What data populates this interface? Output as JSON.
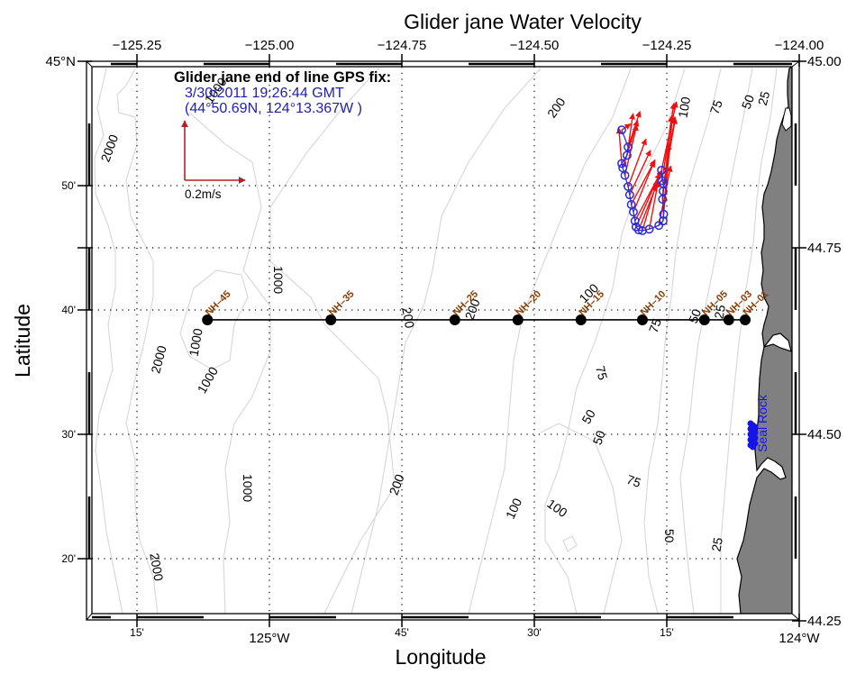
{
  "title": "Glider jane Water Velocity",
  "xlabel": "Longitude",
  "ylabel": "Latitude",
  "top_axis_ticks": [
    {
      "lon": -125.25,
      "label": "−125.25"
    },
    {
      "lon": -125.0,
      "label": "−125.00"
    },
    {
      "lon": -124.75,
      "label": "−124.75"
    },
    {
      "lon": -124.5,
      "label": "−124.50"
    },
    {
      "lon": -124.25,
      "label": "−124.25"
    },
    {
      "lon": -124.0,
      "label": "−124.00"
    }
  ],
  "bottom_axis_ticks": [
    {
      "lon": -125.25,
      "label": "15'"
    },
    {
      "lon": -125.0,
      "label": "125°W"
    },
    {
      "lon": -124.75,
      "label": "45'"
    },
    {
      "lon": -124.5,
      "label": "30'"
    },
    {
      "lon": -124.25,
      "label": "15'"
    },
    {
      "lon": -124.0,
      "label": "124°W"
    }
  ],
  "left_axis_ticks": [
    {
      "lat": 45.0,
      "label": "45°N"
    },
    {
      "lat": 44.8333,
      "label": "50'"
    },
    {
      "lat": 44.75,
      "label": ""
    },
    {
      "lat": 44.6667,
      "label": "40'"
    },
    {
      "lat": 44.5,
      "label": "30'"
    },
    {
      "lat": 44.3333,
      "label": "20'"
    }
  ],
  "right_axis_ticks": [
    {
      "lat": 45.0,
      "label": "45.00"
    },
    {
      "lat": 44.75,
      "label": "44.75"
    },
    {
      "lat": 44.5,
      "label": "44.50"
    },
    {
      "lat": 44.25,
      "label": "44.25"
    }
  ],
  "gps_fix": {
    "heading": "Glider jane end of line GPS fix:",
    "time": "3/30/2011 19:26:44 GMT",
    "position": "(44°50.69N, 124°13.367W )"
  },
  "scale": {
    "label": "0.2m/s",
    "speed_ms": 0.2
  },
  "stations": [
    {
      "name": "NH–45",
      "lon": -125.117
    },
    {
      "name": "NH–35",
      "lon": -124.884
    },
    {
      "name": "NH–25",
      "lon": -124.65
    },
    {
      "name": "NH–20",
      "lon": -124.531
    },
    {
      "name": "NH–15",
      "lon": -124.412
    },
    {
      "name": "NH–10",
      "lon": -124.296
    },
    {
      "name": "NH–05",
      "lon": -124.179
    },
    {
      "name": "NH–03",
      "lon": -124.133
    },
    {
      "name": "NH–01",
      "lon": -124.102
    }
  ],
  "station_lat": 44.6534,
  "seal_rock": {
    "label": "Seal Rock",
    "lat": 44.5,
    "lon": -124.085
  },
  "contour_labels": [
    {
      "text": "2000",
      "lon": -125.3,
      "lat": 44.883,
      "rot": -70
    },
    {
      "text": "1000",
      "lon": -125.1,
      "lat": 44.96,
      "rot": -55
    },
    {
      "text": "1000",
      "lon": -124.985,
      "lat": 44.707,
      "rot": 90
    },
    {
      "text": "1000",
      "lon": -125.137,
      "lat": 44.623,
      "rot": -80
    },
    {
      "text": "1000",
      "lon": -125.115,
      "lat": 44.572,
      "rot": -60
    },
    {
      "text": "2000",
      "lon": -125.207,
      "lat": 44.6,
      "rot": -75
    },
    {
      "text": "1000",
      "lon": -125.043,
      "lat": 44.428,
      "rot": 90
    },
    {
      "text": "2000",
      "lon": -125.215,
      "lat": 44.322,
      "rot": 80
    },
    {
      "text": "200",
      "lon": -124.74,
      "lat": 44.656,
      "rot": 80
    },
    {
      "text": "200",
      "lon": -124.615,
      "lat": 44.667,
      "rot": -70
    },
    {
      "text": "200",
      "lon": -124.457,
      "lat": 44.937,
      "rot": -55
    },
    {
      "text": "200",
      "lon": -124.758,
      "lat": 44.432,
      "rot": -70
    },
    {
      "text": "100",
      "lon": -124.396,
      "lat": 44.688,
      "rot": -45
    },
    {
      "text": "100",
      "lon": -124.215,
      "lat": 44.938,
      "rot": -80
    },
    {
      "text": "100",
      "lon": -124.537,
      "lat": 44.4,
      "rot": -65
    },
    {
      "text": "100",
      "lon": -124.458,
      "lat": 44.4,
      "rot": 35
    },
    {
      "text": "75",
      "lon": -124.27,
      "lat": 44.645,
      "rot": -70
    },
    {
      "text": "75",
      "lon": -124.155,
      "lat": 44.938,
      "rot": -70
    },
    {
      "text": "75",
      "lon": -124.375,
      "lat": 44.582,
      "rot": 75
    },
    {
      "text": "75",
      "lon": -124.313,
      "lat": 44.436,
      "rot": 20
    },
    {
      "text": "50",
      "lon": -124.195,
      "lat": 44.658,
      "rot": -70
    },
    {
      "text": "50",
      "lon": -124.095,
      "lat": 44.945,
      "rot": -70
    },
    {
      "text": "50",
      "lon": -124.396,
      "lat": 44.523,
      "rot": -60
    },
    {
      "text": "50",
      "lon": -124.376,
      "lat": 44.495,
      "rot": -70
    },
    {
      "text": "50",
      "lon": -124.247,
      "lat": 44.364,
      "rot": 90
    },
    {
      "text": "25",
      "lon": -124.065,
      "lat": 44.95,
      "rot": -75
    },
    {
      "text": "25",
      "lon": -124.148,
      "lat": 44.664,
      "rot": -80
    },
    {
      "text": "25",
      "lon": -124.153,
      "lat": 44.352,
      "rot": -80
    }
  ],
  "glider_track": [
    {
      "lon": -124.335,
      "lat": 44.908,
      "u": 0.03,
      "v": 0.02
    },
    {
      "lon": -124.323,
      "lat": 44.885,
      "u": 0.04,
      "v": 0.12
    },
    {
      "lon": -124.325,
      "lat": 44.874,
      "u": 0.02,
      "v": 0.14
    },
    {
      "lon": -124.335,
      "lat": 44.863,
      "u": -0.01,
      "v": 0.12
    },
    {
      "lon": -124.333,
      "lat": 44.857,
      "u": 0.05,
      "v": 0.16
    },
    {
      "lon": -124.329,
      "lat": 44.847,
      "u": 0.04,
      "v": 0.17
    },
    {
      "lon": -124.323,
      "lat": 44.832,
      "u": 0.06,
      "v": 0.16
    },
    {
      "lon": -124.32,
      "lat": 44.821,
      "u": 0.07,
      "v": 0.15
    },
    {
      "lon": -124.317,
      "lat": 44.808,
      "u": 0.08,
      "v": 0.15
    },
    {
      "lon": -124.313,
      "lat": 44.798,
      "u": 0.07,
      "v": 0.17
    },
    {
      "lon": -124.31,
      "lat": 44.786,
      "u": 0.09,
      "v": 0.17
    },
    {
      "lon": -124.308,
      "lat": 44.778,
      "u": 0.08,
      "v": 0.18
    },
    {
      "lon": -124.303,
      "lat": 44.774,
      "u": 0.06,
      "v": 0.15
    },
    {
      "lon": -124.296,
      "lat": 44.773,
      "u": 0.05,
      "v": 0.17
    },
    {
      "lon": -124.283,
      "lat": 44.775,
      "u": 0.03,
      "v": 0.16
    },
    {
      "lon": -124.265,
      "lat": 44.78,
      "u": 0.04,
      "v": 0.2
    },
    {
      "lon": -124.257,
      "lat": 44.786,
      "u": 0.02,
      "v": 0.26
    },
    {
      "lon": -124.256,
      "lat": 44.795,
      "u": 0.03,
      "v": 0.33
    },
    {
      "lon": -124.258,
      "lat": 44.815,
      "u": 0.03,
      "v": 0.28
    },
    {
      "lon": -124.257,
      "lat": 44.826,
      "u": 0.04,
      "v": 0.25
    },
    {
      "lon": -124.256,
      "lat": 44.836,
      "u": 0.04,
      "v": 0.22
    },
    {
      "lon": -124.259,
      "lat": 44.84,
      "u": 0.04,
      "v": 0.26
    },
    {
      "lon": -124.26,
      "lat": 44.854,
      "u": 0.05,
      "v": 0.23
    }
  ],
  "colors": {
    "station_label": "#8b3a00",
    "glider_track": "#2b2bd6",
    "vector": "#ee1111",
    "scale_arrow": "#b22222",
    "gps_text": "#1f1fa8",
    "land": "#808080",
    "contour": "#d9d9d9",
    "seal_rock": "#1515e6"
  }
}
